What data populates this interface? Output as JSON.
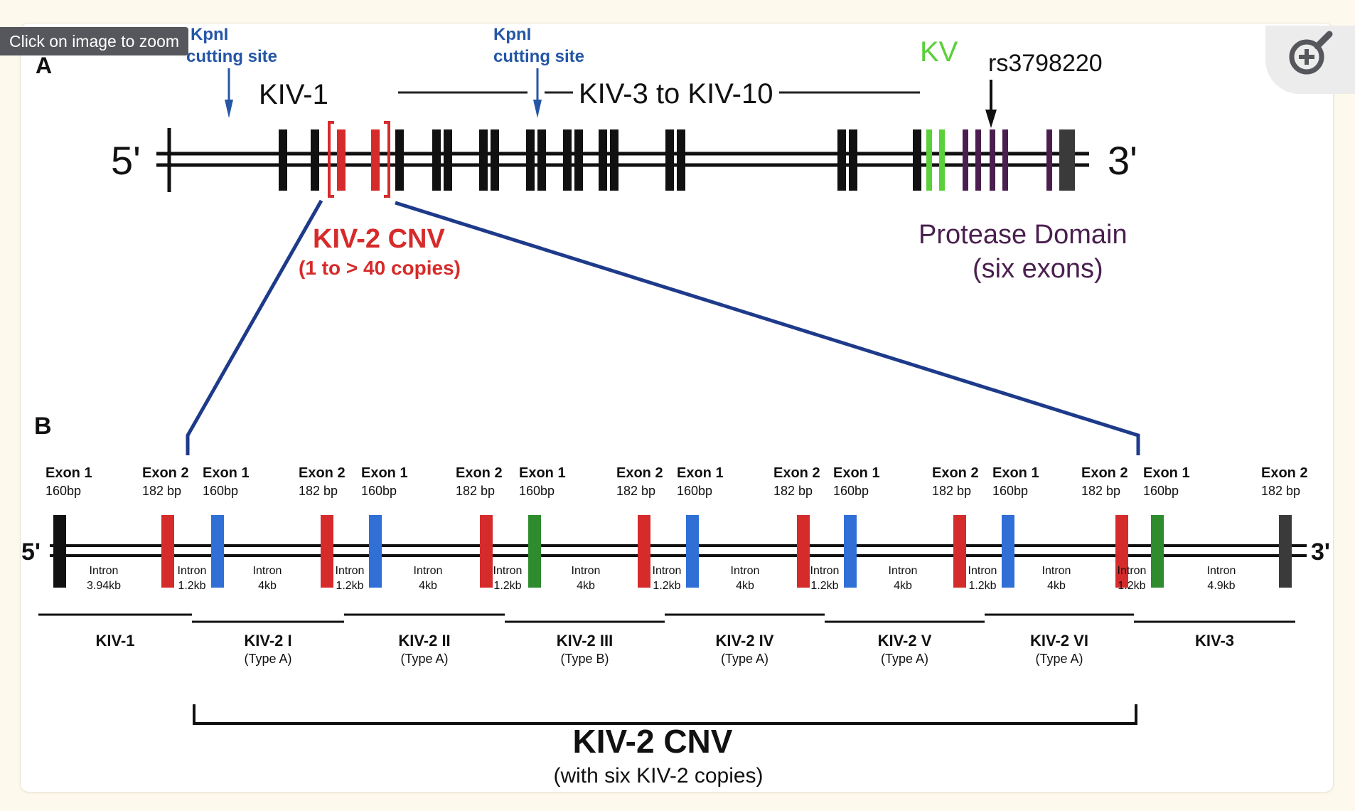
{
  "ui": {
    "zoom_tip": "Click on image to zoom",
    "zoom_icon": "zoom-in-magnifier-icon"
  },
  "colors": {
    "black_exon": "#111111",
    "kiv2_red": "#d62b2b",
    "blue_exon": "#2f6fd6",
    "green_exon": "#2e8b2e",
    "kv_green": "#5ad03a",
    "protease_purple": "#4a1f4f",
    "link_blue": "#1e3a8a",
    "label_blue": "#2456a6"
  },
  "panel_a": {
    "label": "A",
    "kpn1_left": [
      "KpnI",
      "cutting site"
    ],
    "kpn1_right": [
      "KpnI",
      "cutting site"
    ],
    "kiv1": "KIV-1",
    "kiv3_10": "KIV-3 to KIV-10",
    "kv": "KV",
    "snp": "rs3798220",
    "five_prime": "5'",
    "three_prime": "3'",
    "cnv_title": "KIV-2 CNV",
    "cnv_sub": "(1 to > 40 copies)",
    "protease_title": "Protease Domain",
    "protease_sub": "(six exons)"
  },
  "panel_b": {
    "label": "B",
    "five_prime": "5'",
    "three_prime": "3'",
    "exon_labels": [
      {
        "name": "Exon 1",
        "size": "160bp"
      },
      {
        "name": "Exon 2",
        "size": "182 bp"
      },
      {
        "name": "Exon 1",
        "size": "160bp"
      },
      {
        "name": "Exon 2",
        "size": "182 bp"
      },
      {
        "name": "Exon 1",
        "size": "160bp"
      },
      {
        "name": "Exon 2",
        "size": "182 bp"
      },
      {
        "name": "Exon 1",
        "size": "160bp"
      },
      {
        "name": "Exon 2",
        "size": "182 bp"
      },
      {
        "name": "Exon 1",
        "size": "160bp"
      },
      {
        "name": "Exon 2",
        "size": "182 bp"
      },
      {
        "name": "Exon 1",
        "size": "160bp"
      },
      {
        "name": "Exon 2",
        "size": "182 bp"
      },
      {
        "name": "Exon 1",
        "size": "160bp"
      },
      {
        "name": "Exon 2",
        "size": "182 bp"
      },
      {
        "name": "Exon 1",
        "size": "160bp"
      },
      {
        "name": "Exon 2",
        "size": "182 bp"
      }
    ],
    "introns": [
      [
        "Intron",
        "3.94kb"
      ],
      [
        "Intron",
        "1.2kb"
      ],
      [
        "Intron",
        "4kb"
      ],
      [
        "Intron",
        "1.2kb"
      ],
      [
        "Intron",
        "4kb"
      ],
      [
        "Intron",
        "1.2kb"
      ],
      [
        "Intron",
        "4kb"
      ],
      [
        "Intron",
        "1.2kb"
      ],
      [
        "Intron",
        "4kb"
      ],
      [
        "Intron",
        "1.2kb"
      ],
      [
        "Intron",
        "4kb"
      ],
      [
        "Intron",
        "1.2kb"
      ],
      [
        "Intron",
        "4kb"
      ],
      [
        "Intron",
        "1.2kb"
      ],
      [
        "Intron",
        "4.9kb"
      ]
    ],
    "segments": [
      {
        "name": "KIV-1",
        "type": ""
      },
      {
        "name": "KIV-2 I",
        "type": "(Type A)"
      },
      {
        "name": "KIV-2 II",
        "type": "(Type A)"
      },
      {
        "name": "KIV-2 III",
        "type": "(Type B)"
      },
      {
        "name": "KIV-2 IV",
        "type": "(Type A)"
      },
      {
        "name": "KIV-2 V",
        "type": "(Type A)"
      },
      {
        "name": "KIV-2 VI",
        "type": "(Type A)"
      },
      {
        "name": "KIV-3",
        "type": ""
      }
    ],
    "cnv_title": "KIV-2 CNV",
    "cnv_sub": "(with six KIV-2 copies)"
  }
}
